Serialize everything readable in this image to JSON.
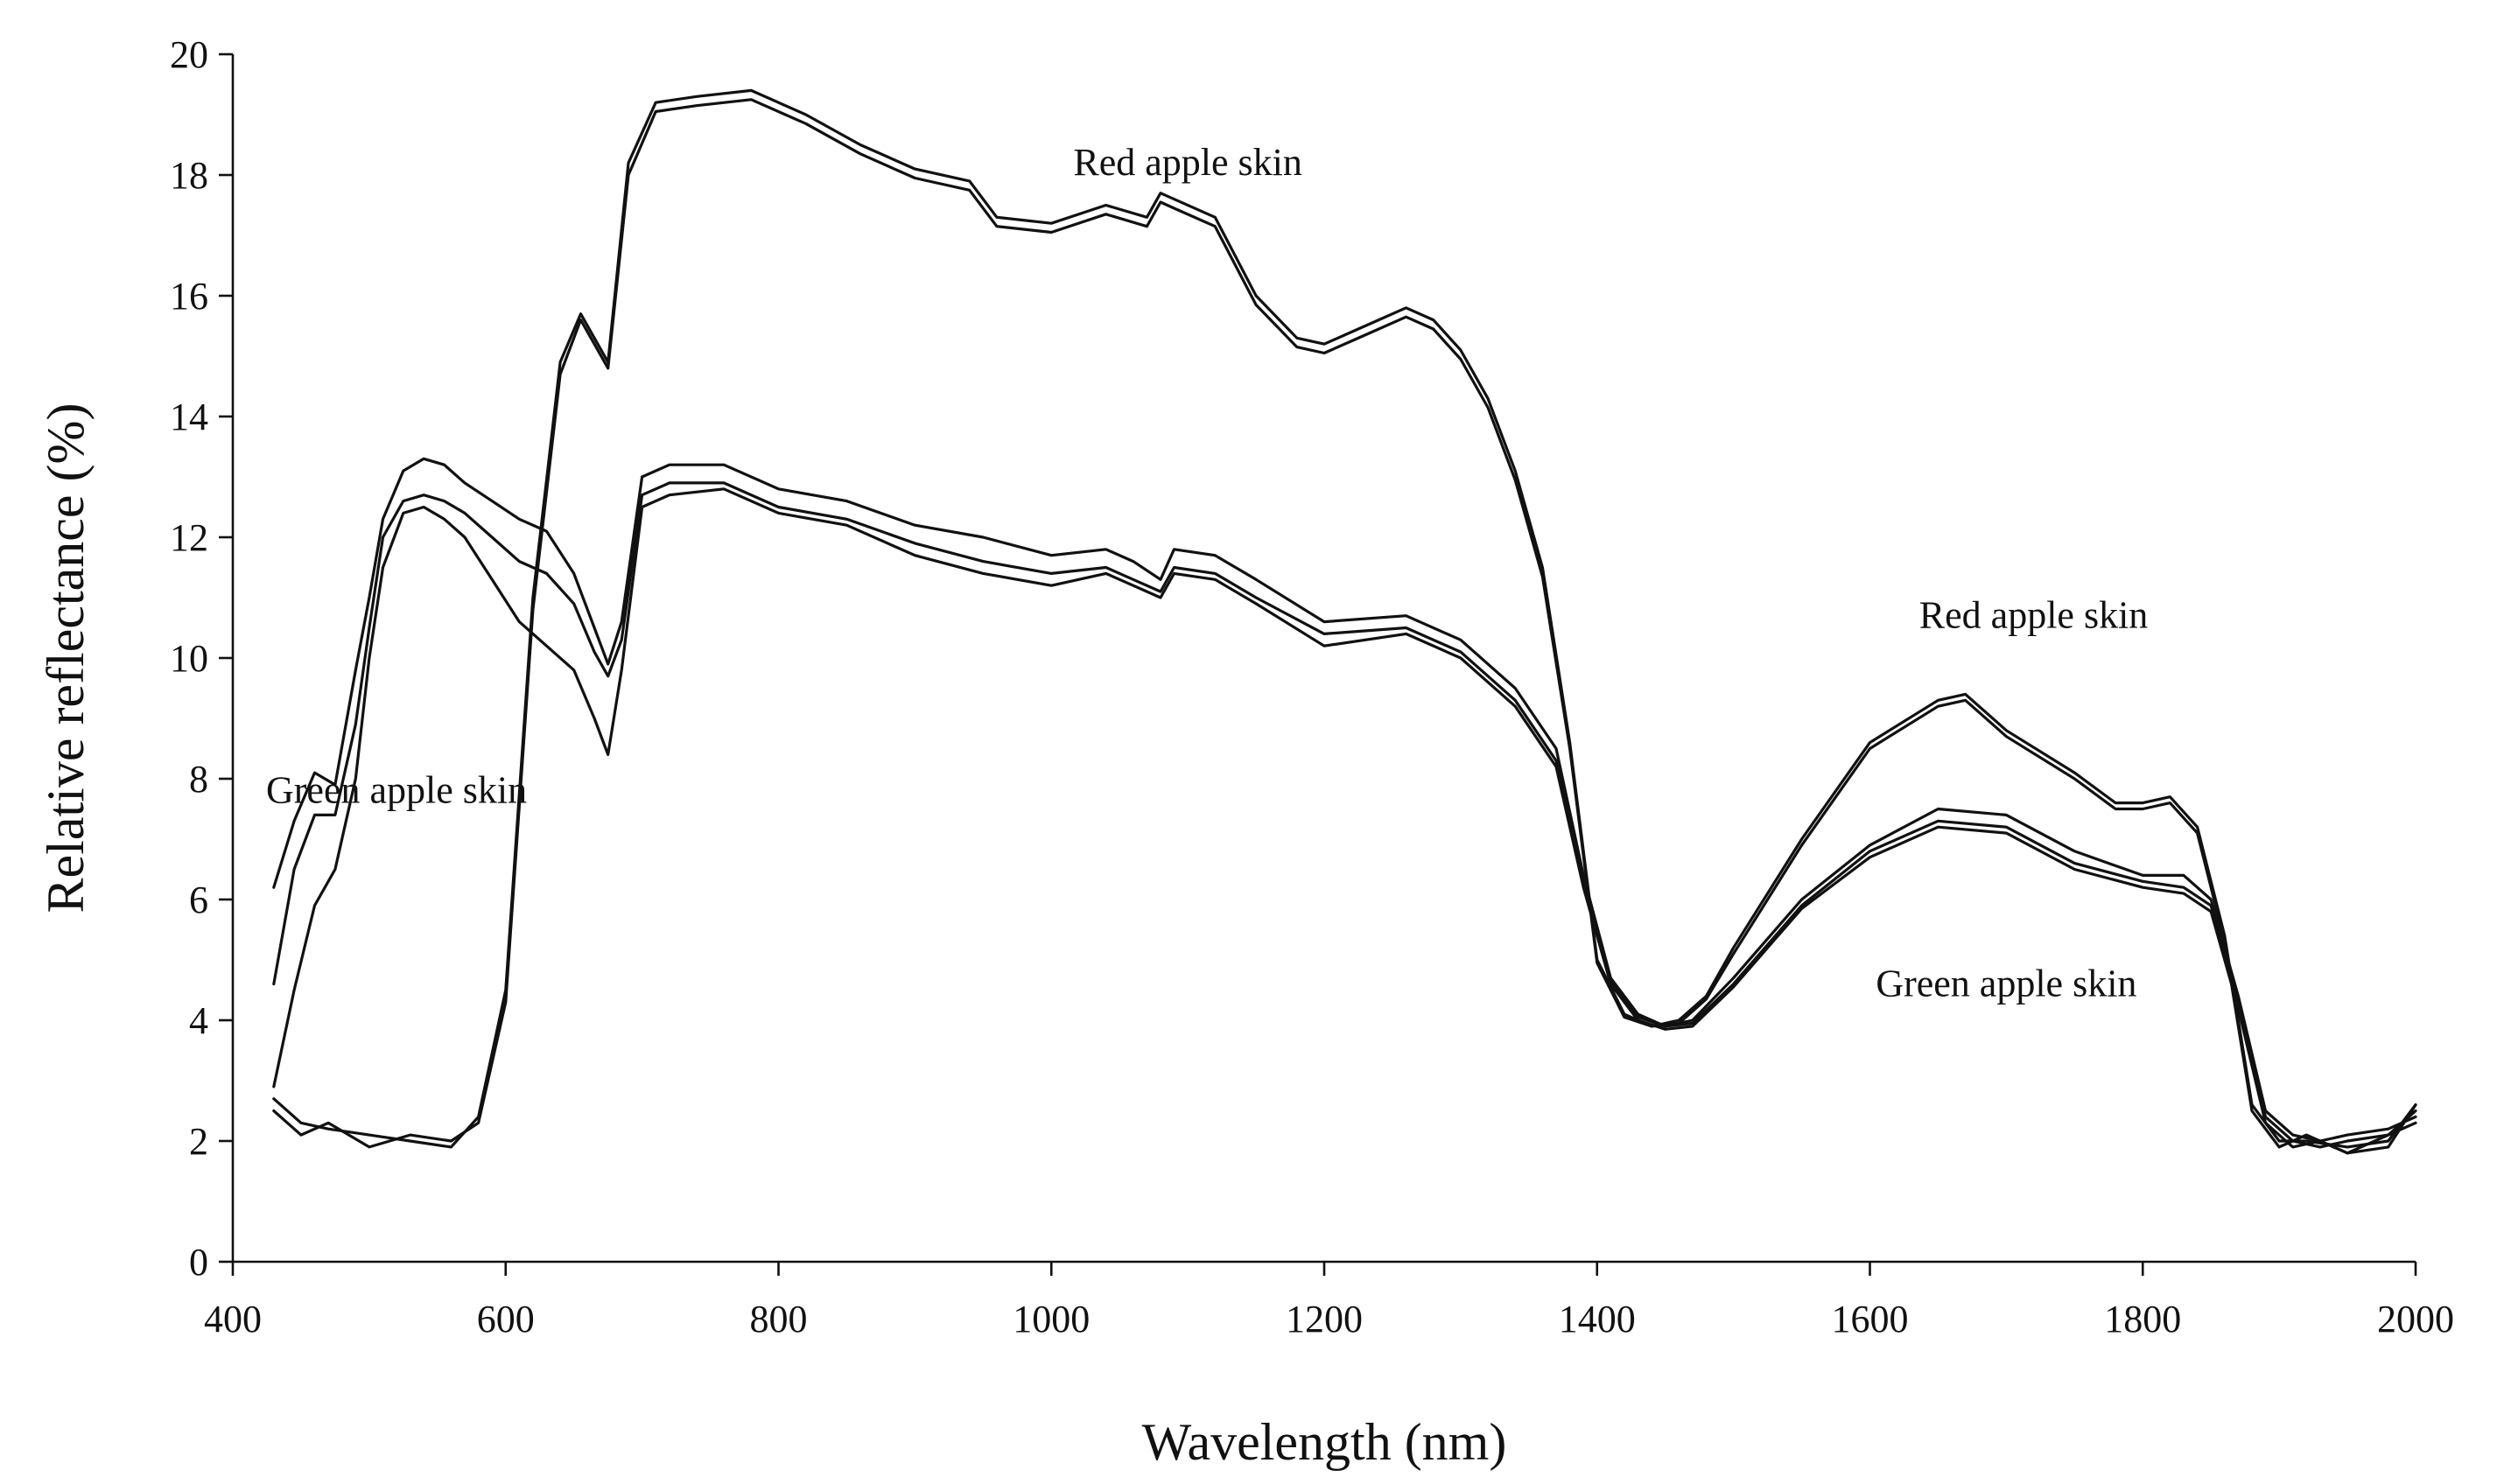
{
  "chart_data": {
    "type": "line",
    "title": "",
    "xlabel": "Wavelength (nm)",
    "ylabel": "Relative reflectance (%)",
    "xlim": [
      400,
      2000
    ],
    "ylim": [
      0,
      20
    ],
    "x_ticks": [
      {
        "value": 400,
        "label": "400"
      },
      {
        "value": 600,
        "label": "600"
      },
      {
        "value": 800,
        "label": "800"
      },
      {
        "value": 1000,
        "label": "1000"
      },
      {
        "value": 1200,
        "label": "1200"
      },
      {
        "value": 1400,
        "label": "1400"
      },
      {
        "value": 1600,
        "label": "1600"
      },
      {
        "value": 1800,
        "label": "1800"
      },
      {
        "value": 2000,
        "label": "2000"
      }
    ],
    "y_ticks": [
      {
        "value": 0,
        "label": "0"
      },
      {
        "value": 2,
        "label": "2"
      },
      {
        "value": 4,
        "label": "4"
      },
      {
        "value": 6,
        "label": "6"
      },
      {
        "value": 8,
        "label": "8"
      },
      {
        "value": 10,
        "label": "10"
      },
      {
        "value": 12,
        "label": "12"
      },
      {
        "value": 14,
        "label": "14"
      },
      {
        "value": 16,
        "label": "16"
      },
      {
        "value": 18,
        "label": "18"
      },
      {
        "value": 20,
        "label": "20"
      }
    ],
    "grid": false,
    "annotations": [
      {
        "text": "Red apple skin",
        "x": 1100,
        "y": 18.0
      },
      {
        "text": "Red apple skin",
        "x": 1720,
        "y": 10.5
      },
      {
        "text": "Green apple skin",
        "x": 520,
        "y": 7.6
      },
      {
        "text": "Green apple skin",
        "x": 1700,
        "y": 4.4
      }
    ],
    "series": [
      {
        "name": "Red apple skin (a)",
        "x": [
          430,
          450,
          470,
          500,
          530,
          560,
          580,
          600,
          620,
          640,
          655,
          665,
          675,
          690,
          710,
          740,
          780,
          820,
          860,
          900,
          940,
          960,
          1000,
          1040,
          1070,
          1080,
          1090,
          1120,
          1150,
          1180,
          1200,
          1230,
          1260,
          1280,
          1300,
          1320,
          1340,
          1360,
          1380,
          1400,
          1420,
          1440,
          1460,
          1480,
          1500,
          1550,
          1600,
          1650,
          1670,
          1700,
          1750,
          1780,
          1800,
          1820,
          1840,
          1860,
          1880,
          1900,
          1920,
          1950,
          1980,
          2000
        ],
        "y": [
          2.7,
          2.3,
          2.2,
          2.1,
          2.0,
          1.9,
          2.4,
          4.5,
          11.0,
          14.9,
          15.7,
          15.3,
          14.9,
          18.2,
          19.2,
          19.3,
          19.4,
          19.0,
          18.5,
          18.1,
          17.9,
          17.3,
          17.2,
          17.5,
          17.3,
          17.7,
          17.6,
          17.3,
          16.0,
          15.3,
          15.2,
          15.5,
          15.8,
          15.6,
          15.1,
          14.3,
          13.1,
          11.5,
          8.6,
          5.0,
          4.1,
          3.9,
          4.0,
          4.4,
          5.2,
          7.0,
          8.6,
          9.3,
          9.4,
          8.8,
          8.1,
          7.6,
          7.6,
          7.7,
          7.2,
          5.4,
          2.6,
          2.0,
          2.0,
          1.9,
          2.0,
          2.6
        ]
      },
      {
        "name": "Red apple skin (b)",
        "x": [
          430,
          450,
          470,
          500,
          530,
          560,
          580,
          600,
          620,
          640,
          655,
          665,
          675,
          690,
          710,
          740,
          780,
          820,
          860,
          900,
          940,
          960,
          1000,
          1040,
          1070,
          1080,
          1090,
          1120,
          1150,
          1180,
          1200,
          1230,
          1260,
          1280,
          1300,
          1320,
          1340,
          1360,
          1380,
          1400,
          1420,
          1440,
          1460,
          1480,
          1500,
          1550,
          1600,
          1650,
          1670,
          1700,
          1750,
          1780,
          1800,
          1820,
          1840,
          1860,
          1880,
          1900,
          1920,
          1950,
          1980,
          2000
        ],
        "y": [
          2.5,
          2.1,
          2.3,
          1.9,
          2.1,
          2.0,
          2.3,
          4.3,
          10.8,
          14.7,
          15.6,
          15.2,
          14.8,
          18.0,
          19.05,
          19.15,
          19.25,
          18.85,
          18.35,
          17.95,
          17.75,
          17.15,
          17.05,
          17.35,
          17.15,
          17.55,
          17.45,
          17.15,
          15.85,
          15.15,
          15.05,
          15.35,
          15.65,
          15.45,
          14.95,
          14.15,
          12.95,
          11.35,
          8.5,
          4.95,
          4.05,
          3.9,
          3.95,
          4.35,
          5.1,
          6.9,
          8.5,
          9.2,
          9.3,
          8.7,
          8.0,
          7.5,
          7.5,
          7.6,
          7.1,
          5.3,
          2.5,
          1.9,
          2.1,
          1.8,
          2.1,
          2.5
        ]
      },
      {
        "name": "Green apple skin (a)",
        "x": [
          430,
          445,
          460,
          475,
          490,
          500,
          510,
          525,
          540,
          555,
          570,
          590,
          610,
          630,
          650,
          665,
          675,
          685,
          700,
          720,
          760,
          800,
          850,
          900,
          950,
          1000,
          1040,
          1060,
          1080,
          1090,
          1120,
          1150,
          1200,
          1260,
          1300,
          1340,
          1370,
          1390,
          1410,
          1430,
          1450,
          1470,
          1500,
          1550,
          1600,
          1650,
          1700,
          1750,
          1800,
          1830,
          1850,
          1870,
          1890,
          1910,
          1930,
          1950,
          1980,
          2000
        ],
        "y": [
          6.2,
          7.3,
          8.1,
          7.9,
          9.8,
          11.0,
          12.3,
          13.1,
          13.3,
          13.2,
          12.9,
          12.6,
          12.3,
          12.1,
          11.4,
          10.5,
          9.9,
          10.6,
          13.0,
          13.2,
          13.2,
          12.8,
          12.6,
          12.2,
          12.0,
          11.7,
          11.8,
          11.6,
          11.3,
          11.8,
          11.7,
          11.3,
          10.6,
          10.7,
          10.3,
          9.5,
          8.5,
          6.4,
          4.7,
          4.1,
          3.9,
          4.0,
          4.7,
          6.0,
          6.9,
          7.5,
          7.4,
          6.8,
          6.4,
          6.4,
          6.0,
          4.4,
          2.5,
          2.1,
          2.0,
          2.1,
          2.2,
          2.4
        ]
      },
      {
        "name": "Green apple skin (b)",
        "x": [
          430,
          445,
          460,
          475,
          490,
          500,
          510,
          525,
          540,
          555,
          570,
          590,
          610,
          630,
          650,
          665,
          675,
          685,
          700,
          720,
          760,
          800,
          850,
          900,
          950,
          1000,
          1040,
          1060,
          1080,
          1090,
          1120,
          1150,
          1200,
          1260,
          1300,
          1340,
          1370,
          1390,
          1410,
          1430,
          1450,
          1470,
          1500,
          1550,
          1600,
          1650,
          1700,
          1750,
          1800,
          1830,
          1850,
          1870,
          1890,
          1910,
          1930,
          1950,
          1980,
          2000
        ],
        "y": [
          4.6,
          6.5,
          7.4,
          7.4,
          8.9,
          10.5,
          12.0,
          12.6,
          12.7,
          12.6,
          12.4,
          12.0,
          11.6,
          11.4,
          10.9,
          10.1,
          9.7,
          10.3,
          12.7,
          12.9,
          12.9,
          12.5,
          12.3,
          11.9,
          11.6,
          11.4,
          11.5,
          11.3,
          11.1,
          11.5,
          11.4,
          11.0,
          10.4,
          10.5,
          10.1,
          9.3,
          8.3,
          6.3,
          4.65,
          4.05,
          3.9,
          3.95,
          4.6,
          5.9,
          6.8,
          7.3,
          7.2,
          6.6,
          6.3,
          6.2,
          5.9,
          4.3,
          2.4,
          2.0,
          1.9,
          2.0,
          2.1,
          2.3
        ]
      },
      {
        "name": "Green apple skin (c)",
        "x": [
          430,
          445,
          460,
          475,
          490,
          500,
          510,
          525,
          540,
          555,
          570,
          590,
          610,
          630,
          650,
          665,
          675,
          685,
          700,
          720,
          760,
          800,
          850,
          900,
          950,
          1000,
          1040,
          1060,
          1080,
          1090,
          1120,
          1150,
          1200,
          1260,
          1300,
          1340,
          1370,
          1390,
          1410,
          1430,
          1450,
          1470,
          1500,
          1550,
          1600,
          1650,
          1700,
          1750,
          1800,
          1830,
          1850,
          1870,
          1890,
          1910,
          1930,
          1950,
          1980,
          2000
        ],
        "y": [
          2.9,
          4.5,
          5.9,
          6.5,
          8.0,
          10.0,
          11.5,
          12.4,
          12.5,
          12.3,
          12.0,
          11.3,
          10.6,
          10.2,
          9.8,
          9.0,
          8.4,
          9.8,
          12.5,
          12.7,
          12.8,
          12.4,
          12.2,
          11.7,
          11.4,
          11.2,
          11.4,
          11.2,
          11.0,
          11.4,
          11.3,
          10.9,
          10.2,
          10.4,
          10.0,
          9.2,
          8.2,
          6.2,
          4.6,
          4.0,
          3.85,
          3.9,
          4.55,
          5.85,
          6.7,
          7.2,
          7.1,
          6.5,
          6.2,
          6.1,
          5.8,
          4.2,
          2.3,
          1.9,
          2.0,
          1.8,
          1.9,
          2.6
        ]
      }
    ]
  }
}
